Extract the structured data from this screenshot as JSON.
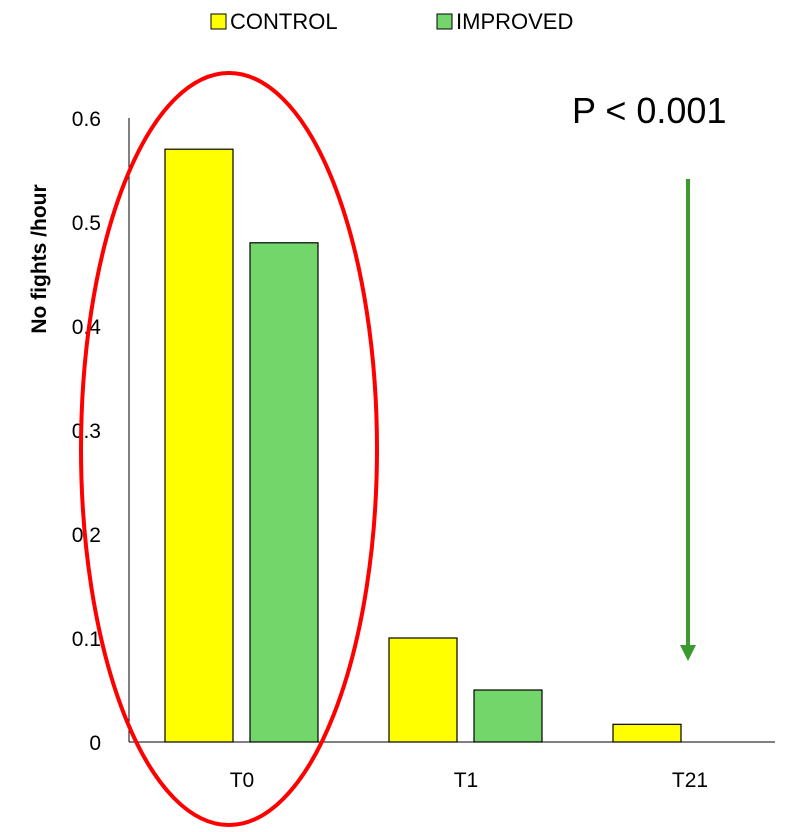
{
  "chart_data": {
    "type": "bar",
    "categories": [
      "T0",
      "T1",
      "T21"
    ],
    "series": [
      {
        "name": "CONTROL",
        "values": [
          0.57,
          0.1,
          0.017
        ],
        "color": "#ffff00"
      },
      {
        "name": "IMPROVED",
        "values": [
          0.48,
          0.05,
          0
        ],
        "color": "#72d66b"
      }
    ],
    "ylabel": "No fights /hour",
    "ylim": [
      0,
      0.6
    ],
    "yticks": [
      "0",
      "0.1",
      "0.2",
      "0.3",
      "0.4",
      "0.5",
      "0.6"
    ],
    "legend_position": "top",
    "grid": false,
    "annotations": {
      "p_value": "P < 0.001",
      "highlight_ellipse_color": "#ff0000",
      "arrow_color": "#3a9a2e"
    }
  }
}
